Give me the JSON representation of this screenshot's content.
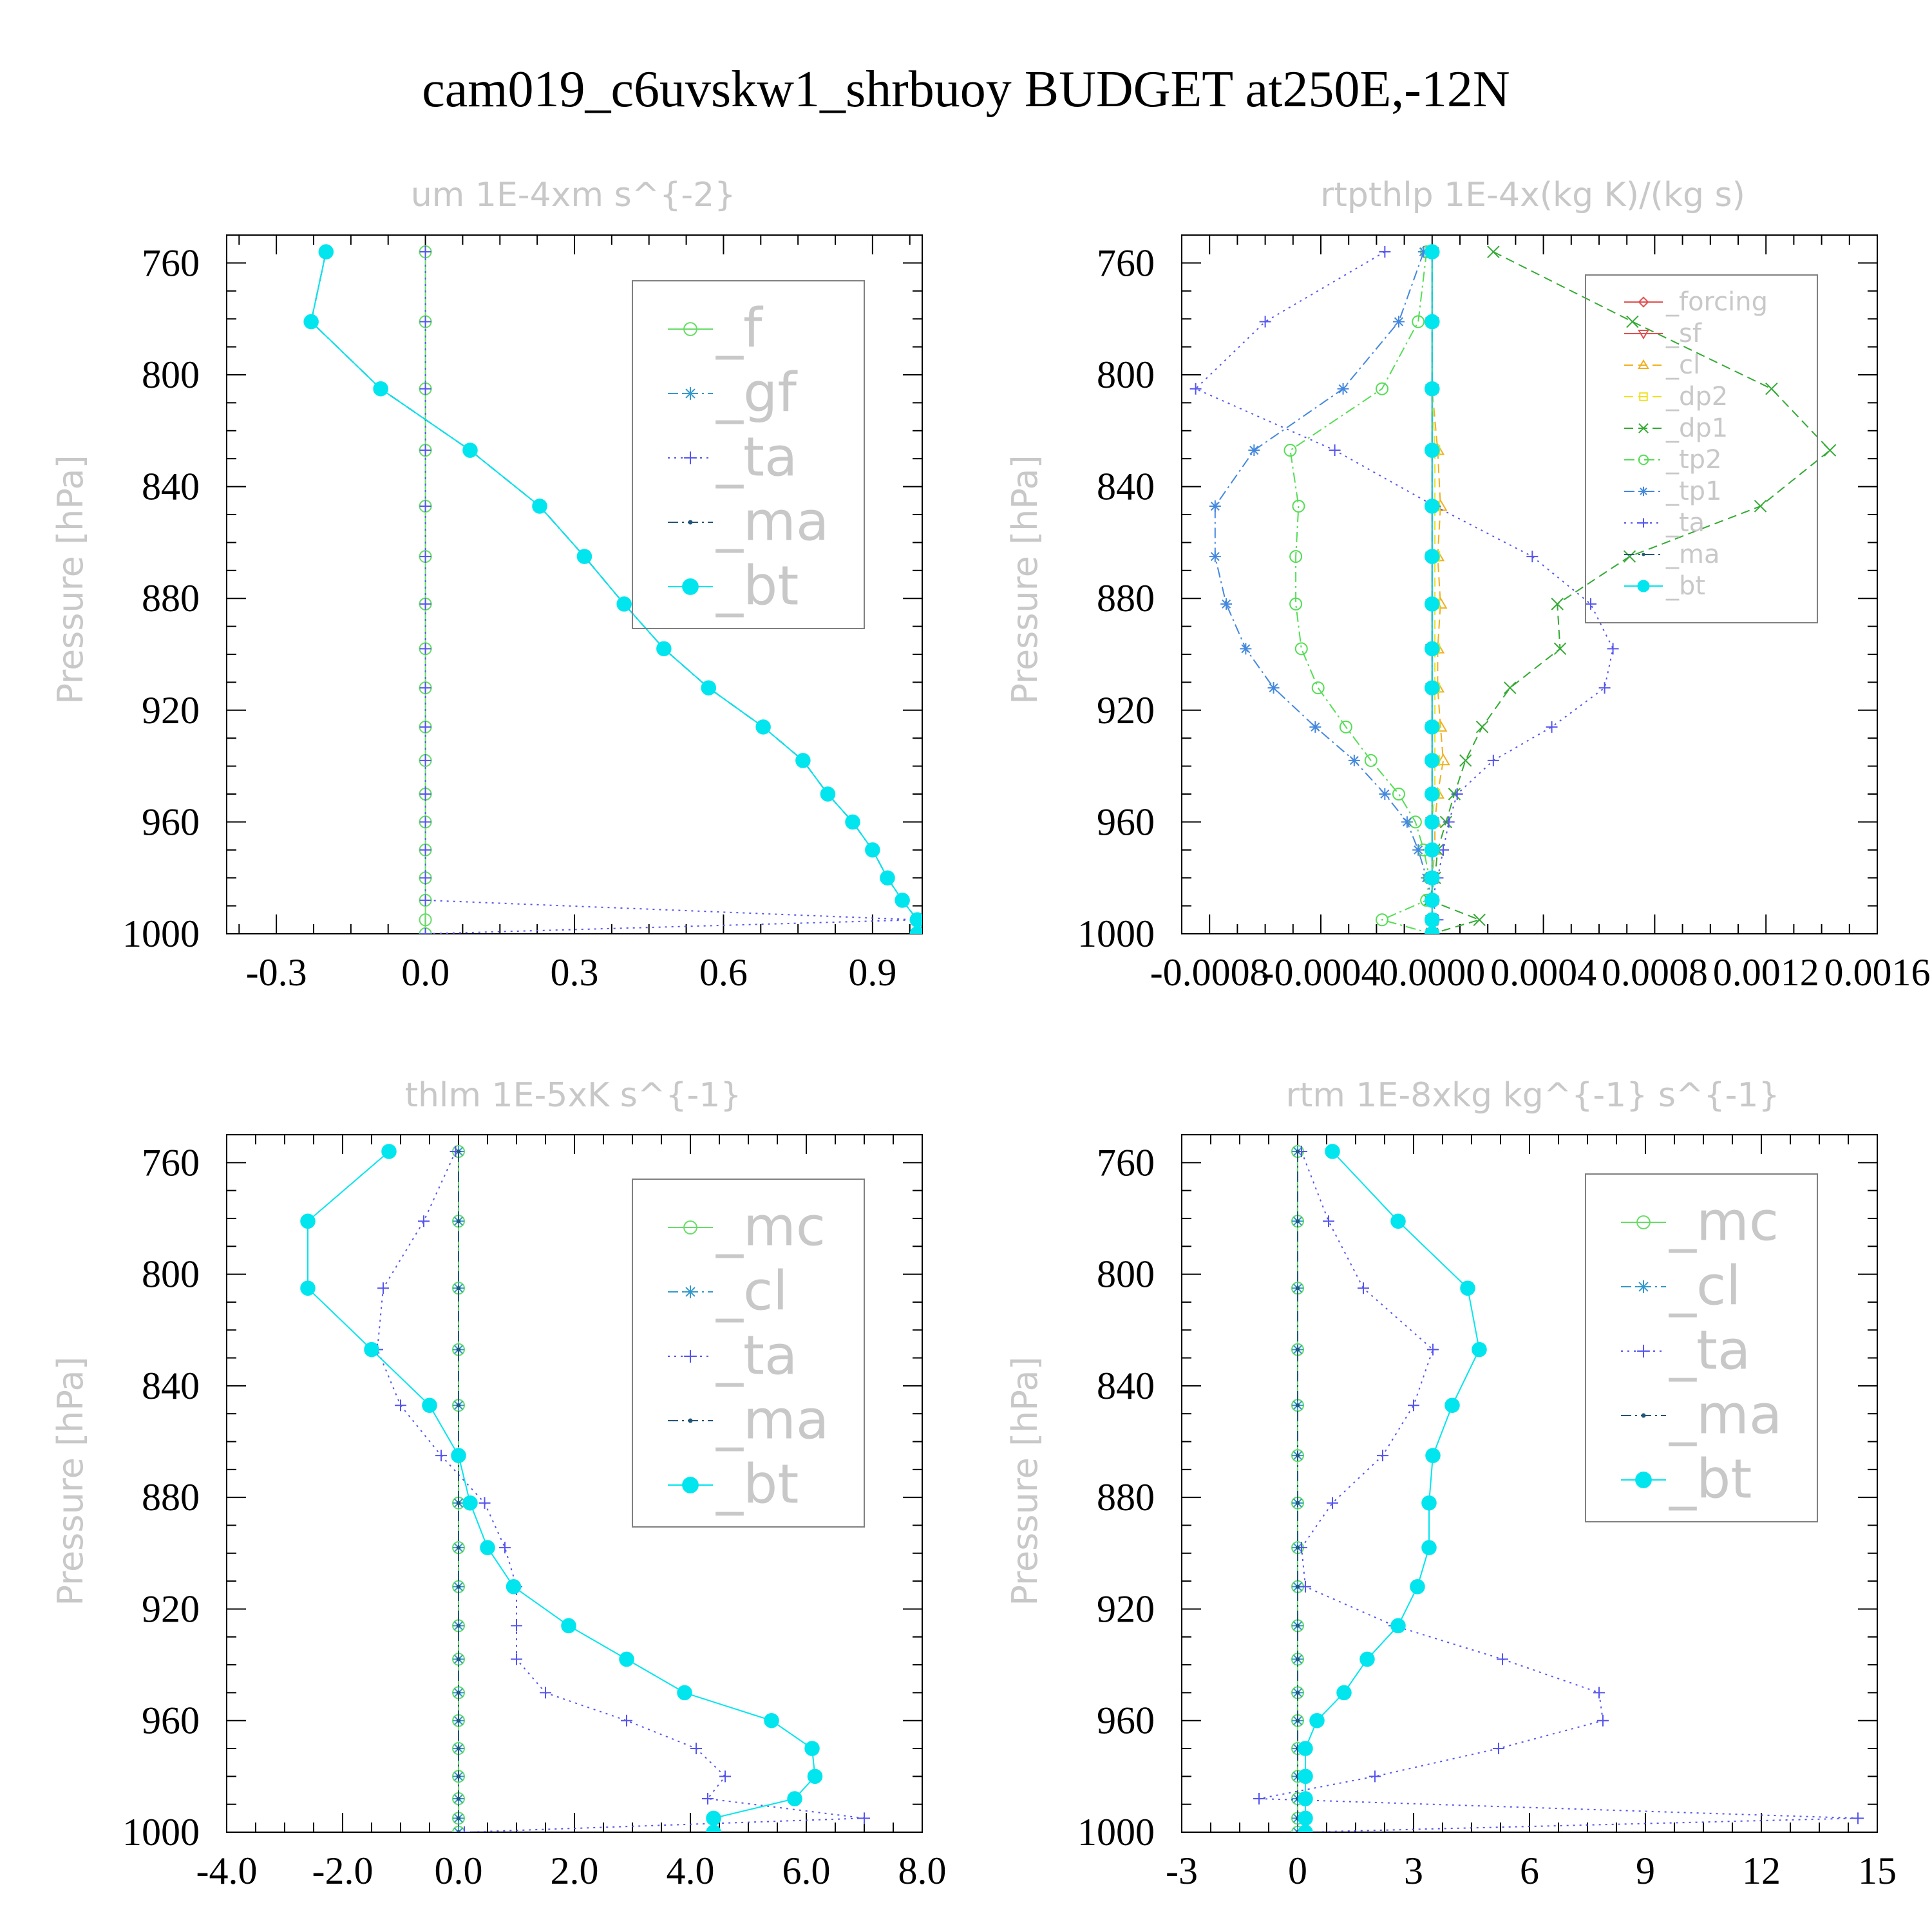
{
  "figure_title": "cam019_c6uvskw1_shrbuoy  BUDGET at250E,-12N",
  "chart_data": [
    {
      "type": "line",
      "title": "um   1E-4xm s^{-2}",
      "ylabel": "Pressure [hPa]",
      "xlim": [
        -0.4,
        1.0
      ],
      "ylim": [
        1000,
        750
      ],
      "xticks": [
        "-0.3",
        "0.0",
        "0.3",
        "0.6",
        "0.9"
      ],
      "xtick_values": [
        -0.3,
        0.0,
        0.3,
        0.6,
        0.9
      ],
      "yticks": [
        "760",
        "800",
        "840",
        "880",
        "920",
        "960",
        "1000"
      ],
      "legend_size": "large",
      "legend": [
        "_f",
        "_gf",
        "_ta",
        "_ma",
        "_bt"
      ],
      "pressure": [
        756,
        781,
        805,
        827,
        847,
        865,
        882,
        898,
        912,
        926,
        938,
        950,
        960,
        970,
        980,
        988,
        995,
        1000
      ],
      "series": [
        {
          "name": "_f",
          "color": "#66dd66",
          "marker": "circle",
          "dash": "solid",
          "values": [
            0,
            0,
            0,
            0,
            0,
            0,
            0,
            0,
            0,
            0,
            0,
            0,
            0,
            0,
            0,
            0,
            0,
            0
          ]
        },
        {
          "name": "_gf",
          "color": "#3399cc",
          "marker": "star",
          "dash": "dashdot",
          "values": [
            -0.2,
            -0.23,
            -0.09,
            0.09,
            0.23,
            0.32,
            0.4,
            0.48,
            0.57,
            0.68,
            0.76,
            0.81,
            0.86,
            0.9,
            0.93,
            0.96,
            0.99,
            0.99
          ]
        },
        {
          "name": "_ta",
          "color": "#5555ee",
          "marker": "plus",
          "dash": "dot",
          "values": [
            0,
            0,
            0,
            0,
            0,
            0,
            0,
            0,
            0,
            0,
            0,
            0,
            0,
            0,
            0,
            0,
            0.99,
            0
          ]
        },
        {
          "name": "_ma",
          "color": "#225577",
          "marker": "dot",
          "dash": "dashdot",
          "values": [
            -0.2,
            -0.23,
            -0.09,
            0.09,
            0.23,
            0.32,
            0.4,
            0.48,
            0.57,
            0.68,
            0.76,
            0.81,
            0.86,
            0.9,
            0.93,
            0.96,
            0.99,
            0.99
          ]
        },
        {
          "name": "_bt",
          "color": "#00e5ee",
          "marker": "filled",
          "dash": "solid",
          "values": [
            -0.2,
            -0.23,
            -0.09,
            0.09,
            0.23,
            0.32,
            0.4,
            0.48,
            0.57,
            0.68,
            0.76,
            0.81,
            0.86,
            0.9,
            0.93,
            0.96,
            0.99,
            0.99
          ]
        }
      ]
    },
    {
      "type": "line",
      "title": "rtpthlp   1E-4x(kg K)/(kg s)",
      "ylabel": "Pressure [hPa]",
      "xlim": [
        -0.0009,
        0.0016
      ],
      "ylim": [
        1000,
        750
      ],
      "xticks": [
        "-0.0008",
        "-0.0004",
        "0.0000",
        "0.0004",
        "0.0008",
        "0.0012",
        "0.0016"
      ],
      "xtick_values": [
        -0.0008,
        -0.0004,
        0.0,
        0.0004,
        0.0008,
        0.0012,
        0.0016
      ],
      "yticks": [
        "760",
        "800",
        "840",
        "880",
        "920",
        "960",
        "1000"
      ],
      "legend_size": "small",
      "legend": [
        "_forcing",
        "_sf",
        "_cl",
        "_dp2",
        "_dp1",
        "_tp2",
        "_tp1",
        "_ta",
        "_ma",
        "_bt"
      ],
      "pressure": [
        756,
        781,
        805,
        827,
        847,
        865,
        882,
        898,
        912,
        926,
        938,
        950,
        960,
        970,
        980,
        988,
        995,
        1000
      ],
      "series": [
        {
          "name": "_forcing",
          "color": "#e05050",
          "marker": "diamond",
          "dash": "solid",
          "values": [
            0,
            0,
            0,
            0,
            0,
            0,
            0,
            0,
            0,
            0,
            0,
            0,
            0,
            0,
            0,
            0,
            0,
            0
          ]
        },
        {
          "name": "_sf",
          "color": "#e05050",
          "marker": "tri-down",
          "dash": "solid",
          "values": [
            0,
            0,
            0,
            0,
            0,
            0,
            0,
            0,
            0,
            0,
            0,
            0,
            0,
            0,
            0,
            0,
            0,
            0
          ]
        },
        {
          "name": "_cl",
          "color": "#f0b020",
          "marker": "tri-up",
          "dash": "dash",
          "values": [
            0,
            0,
            0,
            2e-05,
            3e-05,
            2e-05,
            3e-05,
            2e-05,
            2e-05,
            3e-05,
            4e-05,
            2e-05,
            1e-05,
            1e-05,
            0,
            0,
            0,
            0
          ]
        },
        {
          "name": "_dp2",
          "color": "#f0e020",
          "marker": "square",
          "dash": "dash",
          "values": [
            0,
            0,
            0,
            1e-05,
            1e-05,
            1e-05,
            1e-05,
            1e-05,
            1e-05,
            1e-05,
            1e-05,
            1e-05,
            0,
            0,
            0,
            0,
            0,
            0
          ]
        },
        {
          "name": "_dp1",
          "color": "#33aa33",
          "marker": "x",
          "dash": "dash",
          "values": [
            0.00022,
            0.00072,
            0.00122,
            0.00143,
            0.00118,
            0.00071,
            0.00045,
            0.00046,
            0.00028,
            0.00018,
            0.00012,
            8e-05,
            5e-05,
            2e-05,
            1e-05,
            -1e-05,
            0.00017,
            0
          ]
        },
        {
          "name": "_tp2",
          "color": "#55dd55",
          "marker": "circle",
          "dash": "dashdot",
          "values": [
            -2e-05,
            -5e-05,
            -0.00018,
            -0.00051,
            -0.00048,
            -0.00049,
            -0.00049,
            -0.00047,
            -0.00041,
            -0.00031,
            -0.00022,
            -0.00012,
            -6e-05,
            -3e-05,
            -1e-05,
            -2e-05,
            -0.00018,
            0
          ]
        },
        {
          "name": "_tp1",
          "color": "#4488dd",
          "marker": "star",
          "dash": "dashdot",
          "values": [
            -3e-05,
            -0.00012,
            -0.00032,
            -0.00064,
            -0.00078,
            -0.00078,
            -0.00074,
            -0.00067,
            -0.00057,
            -0.00042,
            -0.00028,
            -0.00017,
            -9e-05,
            -5e-05,
            -2e-05,
            0,
            0,
            0
          ]
        },
        {
          "name": "_ta",
          "color": "#5555ee",
          "marker": "plus",
          "dash": "dot",
          "values": [
            -0.00017,
            -0.0006,
            -0.00085,
            -0.00035,
            1e-05,
            0.00036,
            0.00057,
            0.00065,
            0.00062,
            0.00043,
            0.00022,
            9e-05,
            6e-05,
            4e-05,
            2e-05,
            0,
            2e-05,
            0
          ]
        },
        {
          "name": "_ma",
          "color": "#225577",
          "marker": "dot",
          "dash": "dashdot",
          "values": [
            0,
            0,
            0,
            0,
            0,
            0,
            0,
            0,
            0,
            0,
            0,
            0,
            0,
            0,
            0,
            0,
            0,
            0
          ]
        },
        {
          "name": "_bt",
          "color": "#00e5ee",
          "marker": "filled",
          "dash": "solid",
          "values": [
            0,
            0,
            0,
            0,
            0,
            0,
            0,
            0,
            0,
            0,
            0,
            0,
            0,
            0,
            0,
            0,
            0,
            0
          ]
        }
      ]
    },
    {
      "type": "line",
      "title": "thlm   1E-5xK s^{-1}",
      "ylabel": "Pressure [hPa]",
      "xlim": [
        -4.0,
        8.0
      ],
      "ylim": [
        1000,
        750
      ],
      "xticks": [
        "-4.0",
        "-2.0",
        "0.0",
        "2.0",
        "4.0",
        "6.0",
        "8.0"
      ],
      "xtick_values": [
        -4.0,
        -2.0,
        0.0,
        2.0,
        4.0,
        6.0,
        8.0
      ],
      "yticks": [
        "760",
        "800",
        "840",
        "880",
        "920",
        "960",
        "1000"
      ],
      "legend_size": "large",
      "legend": [
        "_mc",
        "_cl",
        "_ta",
        "_ma",
        "_bt"
      ],
      "pressure": [
        756,
        781,
        805,
        827,
        847,
        865,
        882,
        898,
        912,
        926,
        938,
        950,
        960,
        970,
        980,
        988,
        995,
        1000
      ],
      "series": [
        {
          "name": "_mc",
          "color": "#66dd66",
          "marker": "circle",
          "dash": "solid",
          "values": [
            0,
            0,
            0,
            0,
            0,
            0,
            0,
            0,
            0,
            0,
            0,
            0,
            0,
            0,
            0,
            0,
            0,
            0
          ]
        },
        {
          "name": "_cl",
          "color": "#3399cc",
          "marker": "star",
          "dash": "dashdot",
          "values": [
            0,
            0,
            0,
            0,
            0,
            0,
            0,
            0,
            0,
            0,
            0,
            0,
            0,
            0,
            0,
            0,
            0,
            0
          ]
        },
        {
          "name": "_ta",
          "color": "#5555ee",
          "marker": "plus",
          "dash": "dot",
          "values": [
            -0.05,
            -0.6,
            -1.3,
            -1.4,
            -1.0,
            -0.3,
            0.45,
            0.8,
            1.0,
            1.0,
            1.0,
            1.5,
            2.9,
            4.1,
            4.6,
            4.3,
            7.0,
            0.1
          ]
        },
        {
          "name": "_ma",
          "color": "#225577",
          "marker": "dot",
          "dash": "dashdot",
          "values": [
            0,
            0,
            0,
            0,
            0,
            0,
            0,
            0,
            0,
            0,
            0,
            0,
            0,
            0,
            0,
            0,
            0,
            0
          ]
        },
        {
          "name": "_bt",
          "color": "#00e5ee",
          "marker": "filled",
          "dash": "solid",
          "values": [
            -1.2,
            -2.6,
            -2.6,
            -1.5,
            -0.5,
            0.0,
            0.2,
            0.5,
            0.95,
            1.9,
            2.9,
            3.9,
            5.4,
            6.1,
            6.15,
            5.8,
            4.4,
            4.4
          ]
        }
      ]
    },
    {
      "type": "line",
      "title": "rtm   1E-8xkg kg^{-1} s^{-1}",
      "ylabel": "Pressure [hPa]",
      "xlim": [
        -3,
        15
      ],
      "ylim": [
        1000,
        750
      ],
      "xticks": [
        "-3",
        "0",
        "3",
        "6",
        "9",
        "12",
        "15"
      ],
      "xtick_values": [
        -3,
        0,
        3,
        6,
        9,
        12,
        15
      ],
      "yticks": [
        "760",
        "800",
        "840",
        "880",
        "920",
        "960",
        "1000"
      ],
      "legend_size": "large",
      "legend": [
        "_mc",
        "_cl",
        "_ta",
        "_ma",
        "_bt"
      ],
      "pressure": [
        756,
        781,
        805,
        827,
        847,
        865,
        882,
        898,
        912,
        926,
        938,
        950,
        960,
        970,
        980,
        988,
        995,
        1000
      ],
      "series": [
        {
          "name": "_mc",
          "color": "#66dd66",
          "marker": "circle",
          "dash": "solid",
          "values": [
            0,
            0,
            0,
            0,
            0,
            0,
            0,
            0,
            0,
            0,
            0,
            0,
            0,
            0,
            0,
            0,
            0,
            0
          ]
        },
        {
          "name": "_cl",
          "color": "#3399cc",
          "marker": "star",
          "dash": "dashdot",
          "values": [
            0,
            0,
            0,
            0,
            0,
            0,
            0,
            0,
            0,
            0,
            0,
            0,
            0,
            0,
            0,
            0,
            0,
            0
          ]
        },
        {
          "name": "_ta",
          "color": "#5555ee",
          "marker": "plus",
          "dash": "dot",
          "values": [
            0.1,
            0.8,
            1.7,
            3.5,
            3.0,
            2.2,
            0.9,
            0.1,
            0.2,
            2.5,
            5.3,
            7.8,
            7.9,
            5.2,
            2.0,
            -1.0,
            14.5,
            0.1
          ]
        },
        {
          "name": "_ma",
          "color": "#225577",
          "marker": "dot",
          "dash": "dashdot",
          "values": [
            0,
            0,
            0,
            0,
            0,
            0,
            0,
            0,
            0,
            0,
            0,
            0,
            0,
            0,
            0,
            0,
            0,
            0
          ]
        },
        {
          "name": "_bt",
          "color": "#00e5ee",
          "marker": "filled",
          "dash": "solid",
          "values": [
            0.9,
            2.6,
            4.4,
            4.7,
            4.0,
            3.5,
            3.4,
            3.4,
            3.1,
            2.6,
            1.8,
            1.2,
            0.5,
            0.2,
            0.2,
            0.2,
            0.2,
            0.2
          ]
        }
      ]
    }
  ]
}
